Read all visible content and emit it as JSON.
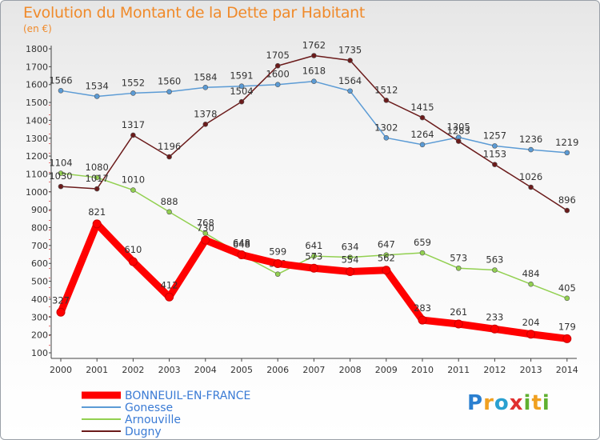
{
  "chart_data": {
    "type": "line",
    "title": "Evolution du Montant de la Dette par Habitant",
    "subtitle": "(en €)",
    "x": [
      "2000",
      "2001",
      "2002",
      "2003",
      "2004",
      "2005",
      "2006",
      "2007",
      "2008",
      "2009",
      "2010",
      "2011",
      "2012",
      "2013",
      "2014"
    ],
    "ylim": [
      100,
      1800
    ],
    "yticks": [
      100,
      200,
      300,
      400,
      500,
      600,
      700,
      800,
      900,
      1000,
      1100,
      1200,
      1300,
      1400,
      1500,
      1600,
      1700,
      1800
    ],
    "grid": false,
    "legend_position": "bottom-left",
    "series": [
      {
        "name": "BONNEUIL-EN-FRANCE",
        "color": "#ff0000",
        "values": [
          327,
          821,
          610,
          412,
          730,
          648,
          599,
          573,
          554,
          562,
          283,
          261,
          233,
          204,
          179
        ]
      },
      {
        "name": "Gonesse",
        "color": "#5b9bd5",
        "values": [
          1566,
          1534,
          1552,
          1560,
          1584,
          1591,
          1600,
          1618,
          1564,
          1302,
          1264,
          1305,
          1257,
          1236,
          1219
        ]
      },
      {
        "name": "Arnouville",
        "color": "#92d050",
        "values": [
          1104,
          1080,
          1010,
          888,
          768,
          648,
          540,
          641,
          634,
          647,
          659,
          573,
          563,
          484,
          405
        ]
      },
      {
        "name": "Dugny",
        "color": "#6b1b1b",
        "values": [
          1030,
          1017,
          1317,
          1196,
          1378,
          1504,
          1705,
          1762,
          1735,
          1512,
          1415,
          1283,
          1153,
          1026,
          896
        ]
      }
    ]
  },
  "logo": {
    "p": "P",
    "r": "r",
    "o": "o",
    "x": "x",
    "i": "i",
    "t": "t",
    "i2": "i"
  }
}
